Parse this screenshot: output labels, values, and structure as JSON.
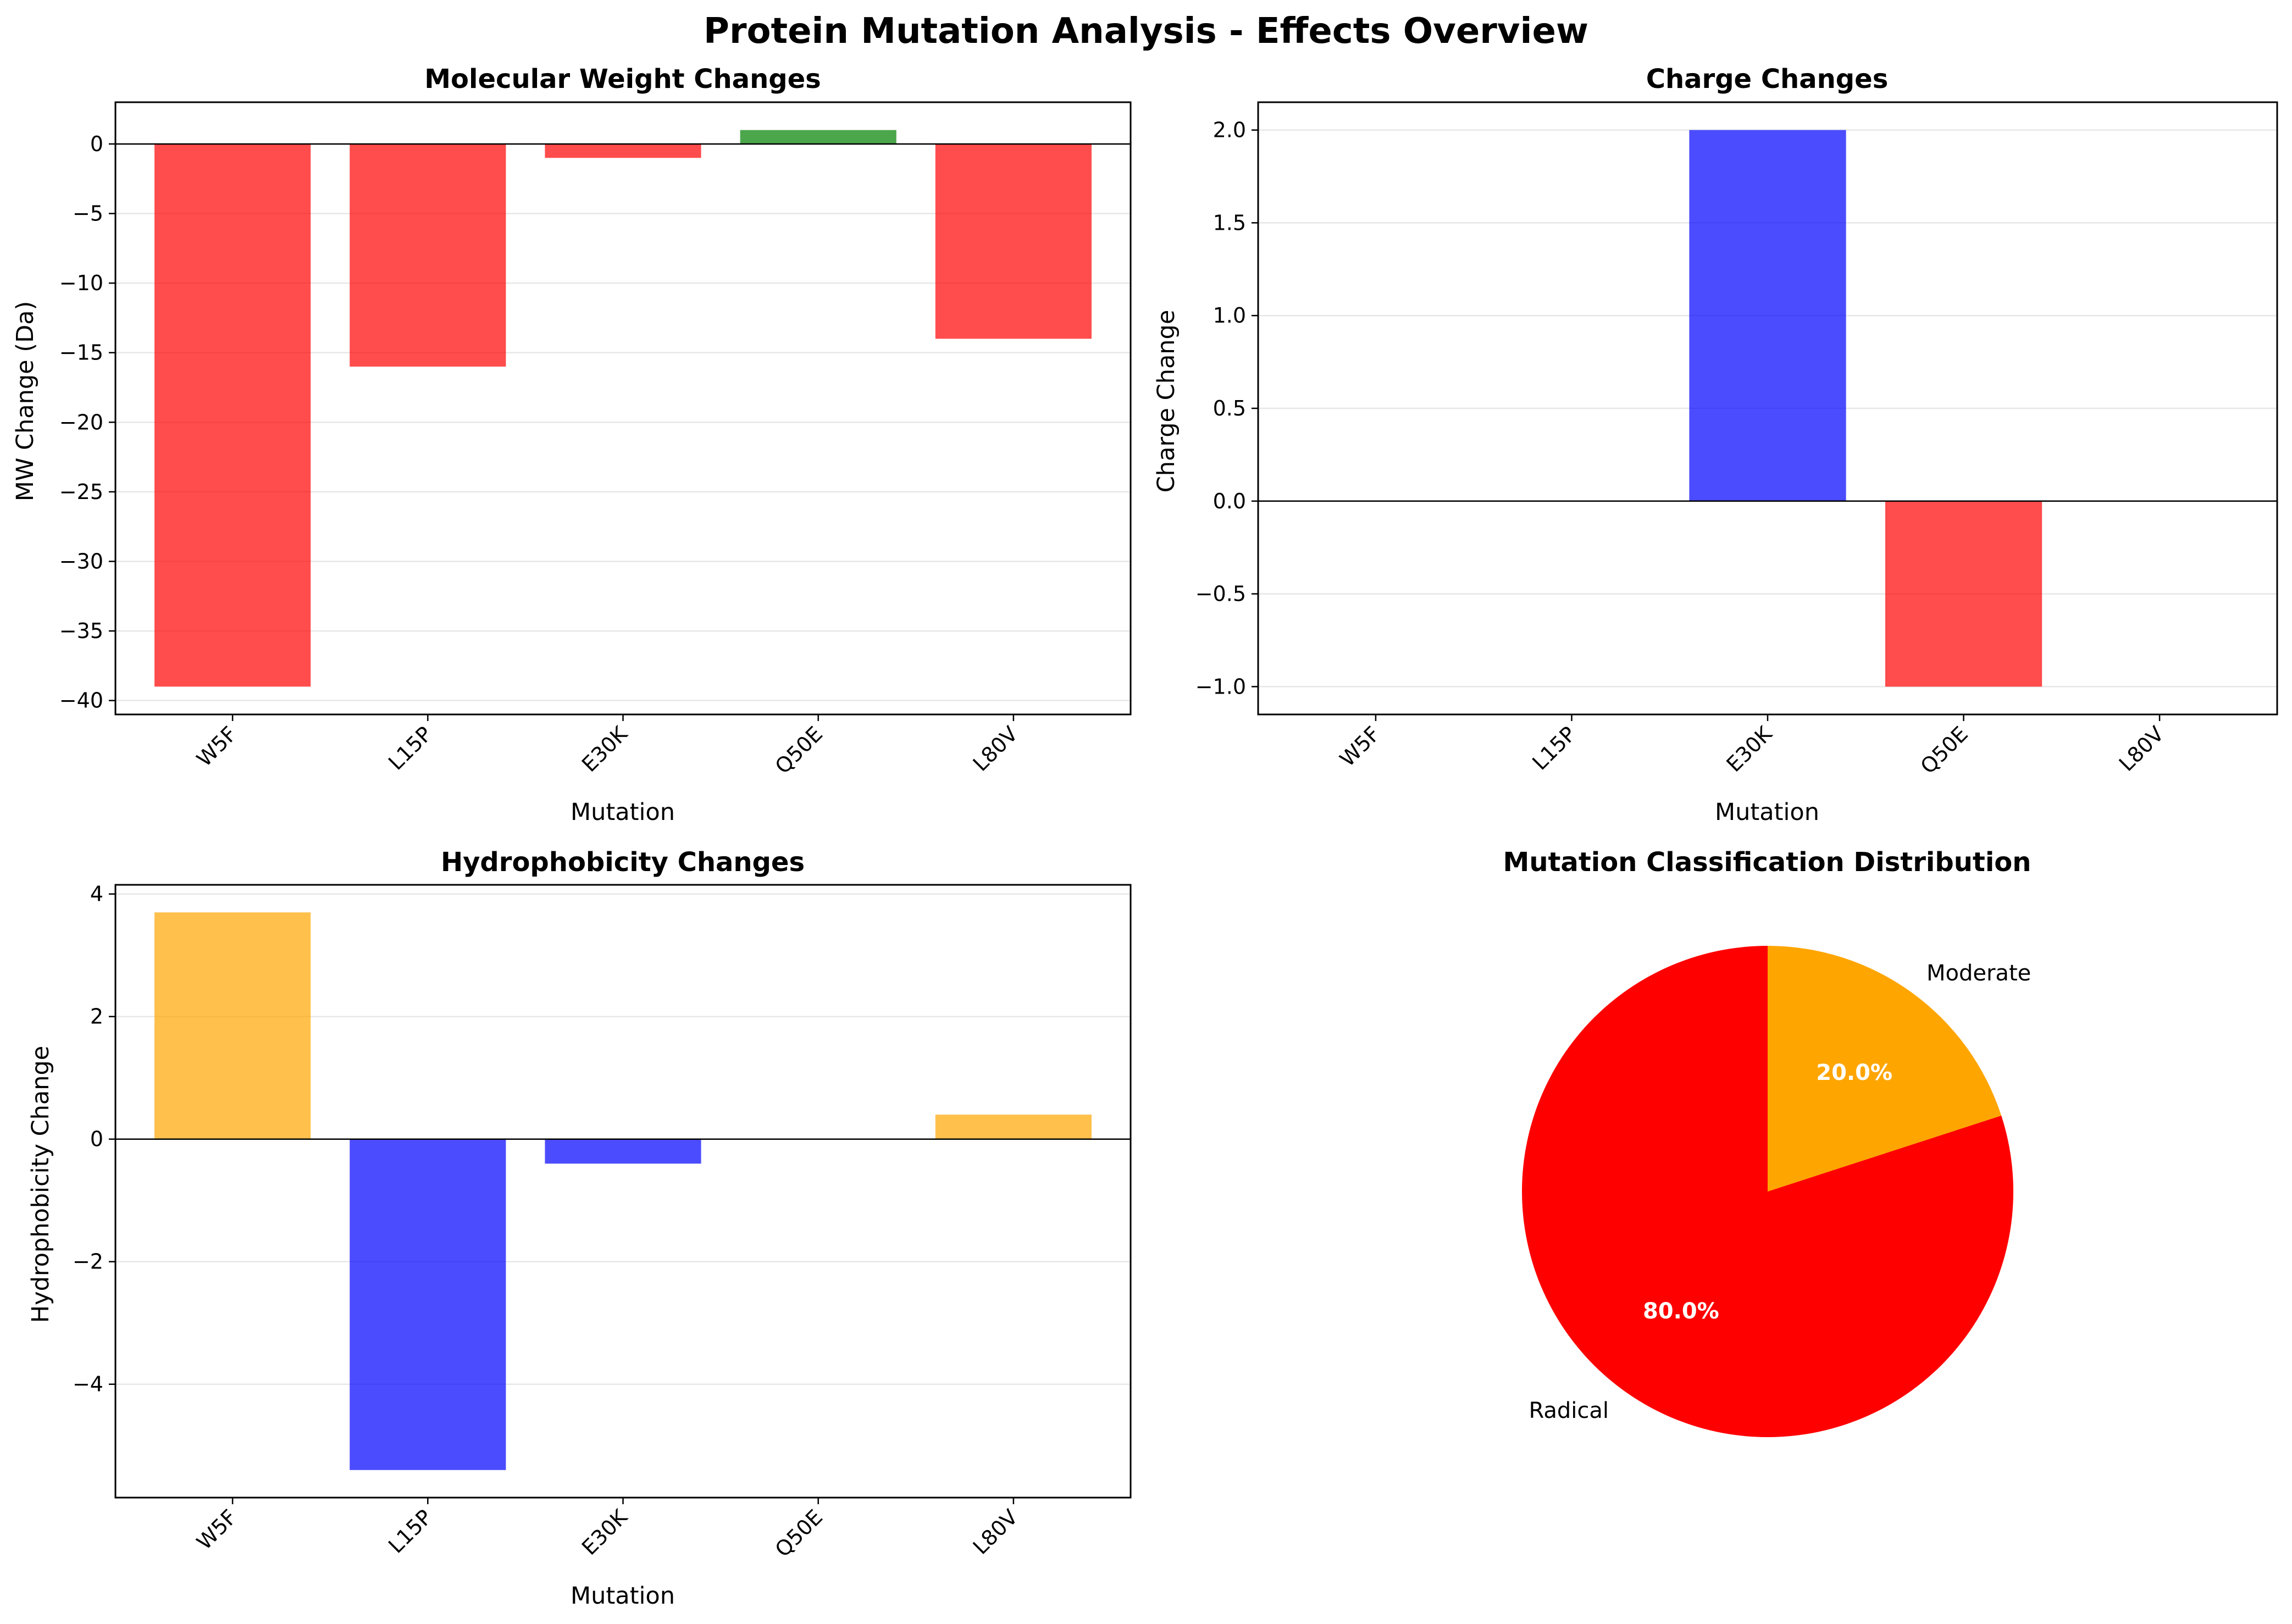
{
  "figure": {
    "title": "Protein Mutation Analysis - Effects Overview"
  },
  "chart_data": [
    {
      "type": "bar",
      "title": "Molecular Weight Changes",
      "xlabel": "Mutation",
      "ylabel": "MW Change (Da)",
      "categories": [
        "W5F",
        "L15P",
        "E30K",
        "Q50E",
        "L80V"
      ],
      "values": [
        -39,
        -16,
        -1,
        1,
        -14
      ],
      "colors": [
        "#ff0000",
        "#ff0000",
        "#ff0000",
        "#008000",
        "#ff0000"
      ],
      "bar_alpha": 0.7,
      "ylim": [
        -41,
        3
      ],
      "yticks": [
        0,
        -5,
        -10,
        -15,
        -20,
        -25,
        -30,
        -35,
        -40
      ],
      "ytick_labels": [
        "0",
        "−5",
        "−10",
        "−15",
        "−20",
        "−25",
        "−30",
        "−35",
        "−40"
      ],
      "grid": "y",
      "zero_line": true
    },
    {
      "type": "bar",
      "title": "Charge Changes",
      "xlabel": "Mutation",
      "ylabel": "Charge Change",
      "categories": [
        "W5F",
        "L15P",
        "E30K",
        "Q50E",
        "L80V"
      ],
      "values": [
        0,
        0,
        2,
        -1,
        0
      ],
      "colors": [
        "#808080",
        "#808080",
        "#0000ff",
        "#ff0000",
        "#808080"
      ],
      "bar_alpha": 0.7,
      "ylim": [
        -1.15,
        2.15
      ],
      "yticks": [
        2.0,
        1.5,
        1.0,
        0.5,
        0.0,
        -0.5,
        -1.0
      ],
      "ytick_labels": [
        "2.0",
        "1.5",
        "1.0",
        "0.5",
        "0.0",
        "−0.5",
        "−1.0"
      ],
      "grid": "y",
      "zero_line": true
    },
    {
      "type": "bar",
      "title": "Hydrophobicity Changes",
      "xlabel": "Mutation",
      "ylabel": "Hydrophobicity Change",
      "categories": [
        "W5F",
        "L15P",
        "E30K",
        "Q50E",
        "L80V"
      ],
      "values": [
        3.7,
        -5.4,
        -0.4,
        0.0,
        0.4
      ],
      "colors": [
        "#ffa500",
        "#0000ff",
        "#0000ff",
        "#808080",
        "#ffa500"
      ],
      "bar_alpha": 0.7,
      "ylim": [
        -5.85,
        4.15
      ],
      "yticks": [
        4,
        2,
        0,
        -2,
        -4
      ],
      "ytick_labels": [
        "4",
        "2",
        "0",
        "−2",
        "−4"
      ],
      "grid": "y",
      "zero_line": true
    },
    {
      "type": "pie",
      "title": "Mutation Classification Distribution",
      "slices": [
        {
          "label": "Radical",
          "value": 80.0,
          "pct_label": "80.0%",
          "color": "#ff0000"
        },
        {
          "label": "Moderate",
          "value": 20.0,
          "pct_label": "20.0%",
          "color": "#ffa500"
        }
      ],
      "start_angle": 90
    }
  ]
}
